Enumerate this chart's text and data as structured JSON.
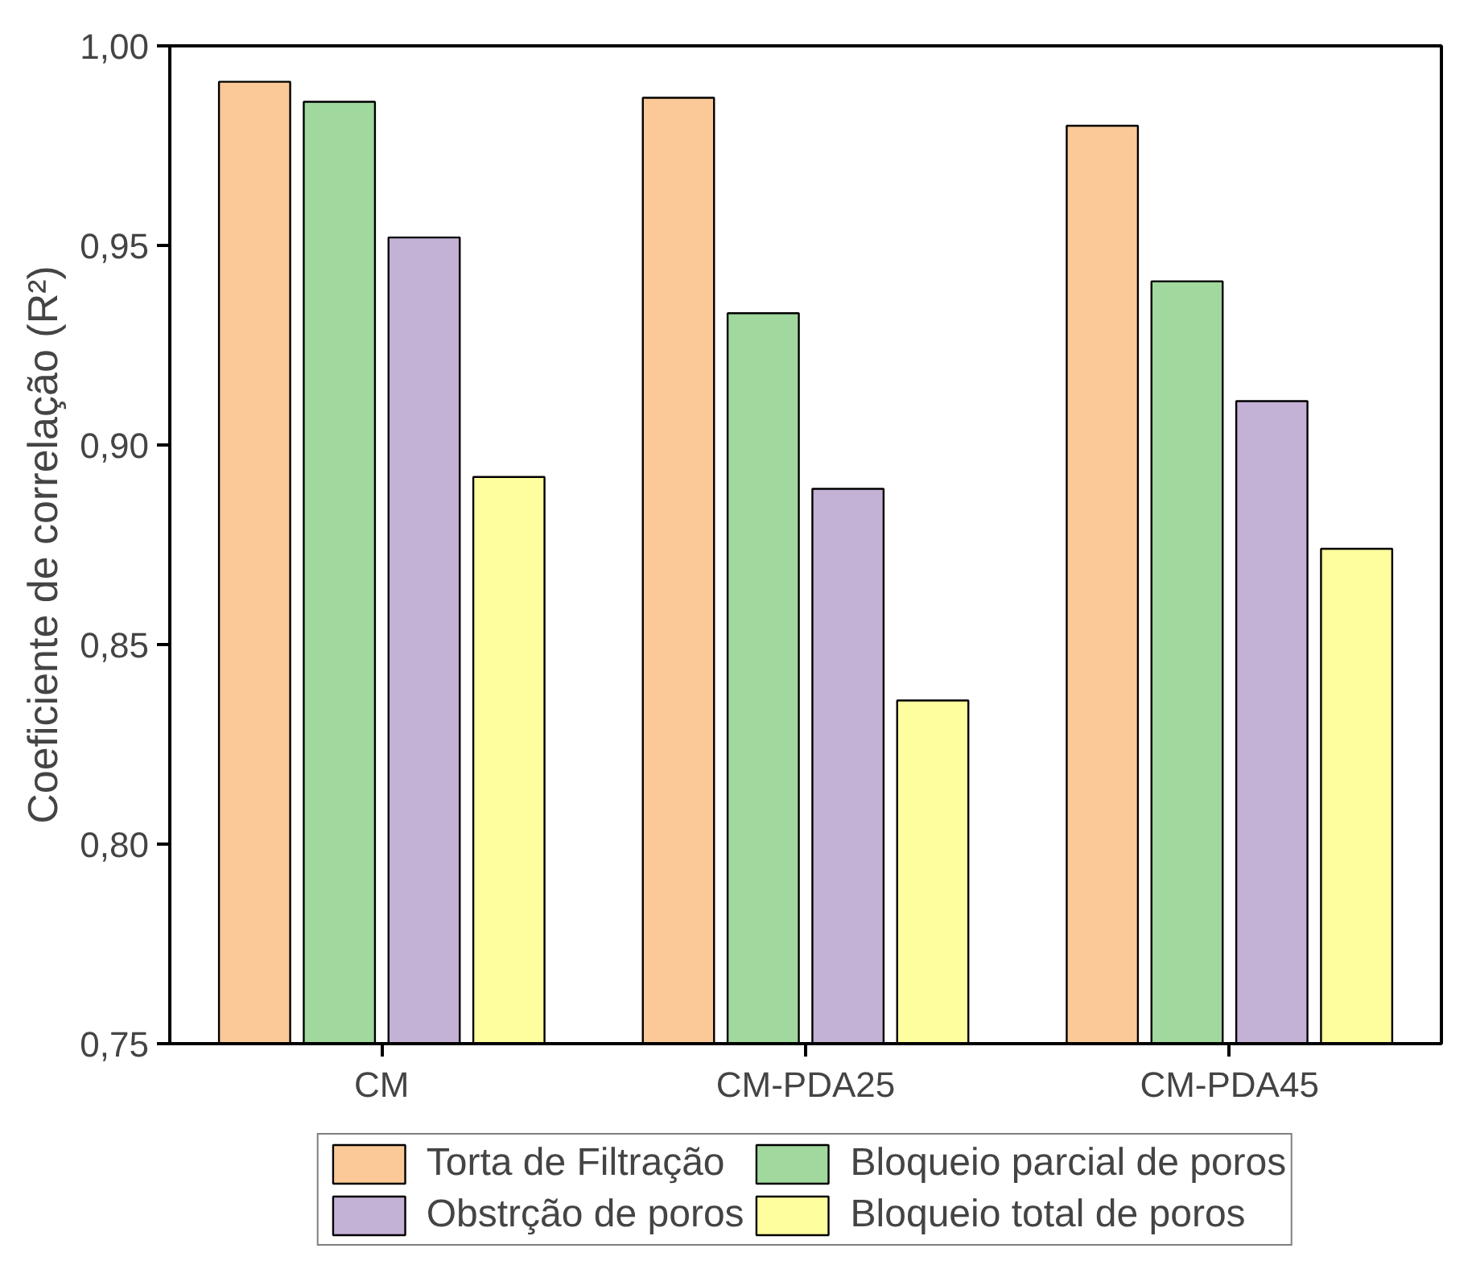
{
  "chart_data": {
    "type": "bar",
    "ylabel": "Coeficiente de correlação (R²)",
    "categories": [
      "CM",
      "CM-PDA25",
      "CM-PDA45"
    ],
    "series": [
      {
        "name": "Torta de Filtração",
        "color": "#fbc897",
        "values": [
          0.991,
          0.987,
          0.98
        ]
      },
      {
        "name": "Bloqueio parcial de poros",
        "color": "#a0d89e",
        "values": [
          0.986,
          0.933,
          0.941
        ]
      },
      {
        "name": "Obstrção de poros",
        "color": "#c3b1d6",
        "values": [
          0.952,
          0.889,
          0.911
        ]
      },
      {
        "name": "Bloqueio total de poros",
        "color": "#fefe9e",
        "values": [
          0.892,
          0.836,
          0.874
        ]
      }
    ],
    "ylim": [
      0.75,
      1.0
    ],
    "yticks": [
      {
        "value": 0.75,
        "label": "0,75"
      },
      {
        "value": 0.8,
        "label": "0,80"
      },
      {
        "value": 0.85,
        "label": "0,85"
      },
      {
        "value": 0.9,
        "label": "0,90"
      },
      {
        "value": 0.95,
        "label": "0,95"
      },
      {
        "value": 1.0,
        "label": "1,00"
      }
    ],
    "grid": false,
    "legend": "bottom"
  }
}
